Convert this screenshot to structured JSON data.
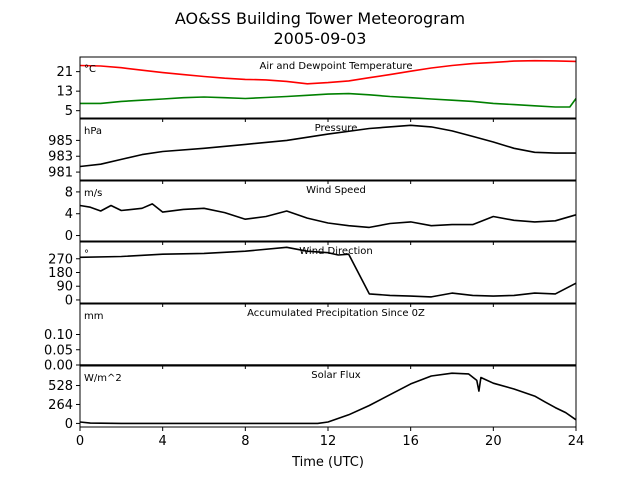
{
  "chart_data": {
    "type": "line",
    "title": "AO&SS Building Tower Meteorogram",
    "subtitle": "2005-09-03",
    "xlabel": "Time (UTC)",
    "xlim": [
      0,
      24
    ],
    "xticks": [
      "0",
      "4",
      "8",
      "12",
      "16",
      "20",
      "24"
    ],
    "grid": false,
    "panels": [
      {
        "title": "Air and Dewpoint Temperature",
        "unit": "°C",
        "ylim": [
          2,
          27
        ],
        "yticks": [
          {
            "v": 5,
            "label": "5"
          },
          {
            "v": 13,
            "label": "13"
          },
          {
            "v": 21,
            "label": "21"
          }
        ],
        "series": [
          {
            "color": "#ff0000",
            "points": [
              [
                0,
                23.5
              ],
              [
                1,
                23.3
              ],
              [
                2,
                22.6
              ],
              [
                3,
                21.6
              ],
              [
                4,
                20.6
              ],
              [
                5,
                19.8
              ],
              [
                6,
                19.0
              ],
              [
                7,
                18.3
              ],
              [
                8,
                17.8
              ],
              [
                9,
                17.6
              ],
              [
                10,
                17.0
              ],
              [
                11,
                16.0
              ],
              [
                12,
                16.5
              ],
              [
                13,
                17.2
              ],
              [
                14,
                18.5
              ],
              [
                15,
                19.8
              ],
              [
                16,
                21.2
              ],
              [
                17,
                22.5
              ],
              [
                18,
                23.5
              ],
              [
                19,
                24.3
              ],
              [
                20,
                24.8
              ],
              [
                21,
                25.3
              ],
              [
                22,
                25.5
              ],
              [
                23,
                25.4
              ],
              [
                24,
                25.2
              ]
            ]
          },
          {
            "color": "#008000",
            "points": [
              [
                0,
                8.0
              ],
              [
                1,
                8.0
              ],
              [
                2,
                8.8
              ],
              [
                3,
                9.3
              ],
              [
                4,
                9.8
              ],
              [
                5,
                10.3
              ],
              [
                6,
                10.6
              ],
              [
                7,
                10.3
              ],
              [
                8,
                10.0
              ],
              [
                9,
                10.4
              ],
              [
                10,
                10.8
              ],
              [
                11,
                11.3
              ],
              [
                12,
                11.8
              ],
              [
                13,
                12.0
              ],
              [
                14,
                11.5
              ],
              [
                15,
                10.8
              ],
              [
                16,
                10.3
              ],
              [
                17,
                9.8
              ],
              [
                18,
                9.3
              ],
              [
                19,
                8.8
              ],
              [
                20,
                8.0
              ],
              [
                21,
                7.5
              ],
              [
                22,
                7.0
              ],
              [
                23,
                6.5
              ],
              [
                23.7,
                6.5
              ],
              [
                24,
                10.0
              ]
            ]
          }
        ]
      },
      {
        "title": "Pressure",
        "unit": "hPa",
        "ylim": [
          980,
          987.7
        ],
        "yticks": [
          {
            "v": 981,
            "label": "981"
          },
          {
            "v": 983,
            "label": "983"
          },
          {
            "v": 985,
            "label": "985"
          }
        ],
        "series": [
          {
            "color": "#000000",
            "points": [
              [
                0,
                981.7
              ],
              [
                1,
                982.0
              ],
              [
                2,
                982.6
              ],
              [
                3,
                983.2
              ],
              [
                4,
                983.6
              ],
              [
                6,
                984.0
              ],
              [
                8,
                984.5
              ],
              [
                10,
                985.0
              ],
              [
                12,
                985.8
              ],
              [
                14,
                986.5
              ],
              [
                16,
                986.9
              ],
              [
                17,
                986.7
              ],
              [
                18,
                986.2
              ],
              [
                19,
                985.5
              ],
              [
                20,
                984.8
              ],
              [
                21,
                984.0
              ],
              [
                22,
                983.5
              ],
              [
                23,
                983.4
              ],
              [
                24,
                983.4
              ]
            ]
          }
        ]
      },
      {
        "title": "Wind Speed",
        "unit": "m/s",
        "ylim": [
          -1,
          10
        ],
        "yticks": [
          {
            "v": 0,
            "label": "0"
          },
          {
            "v": 4,
            "label": "4"
          },
          {
            "v": 8,
            "label": "8"
          }
        ],
        "series": [
          {
            "color": "#000000",
            "points": [
              [
                0,
                5.5
              ],
              [
                0.5,
                5.2
              ],
              [
                1,
                4.5
              ],
              [
                1.5,
                5.5
              ],
              [
                2,
                4.6
              ],
              [
                3,
                5.0
              ],
              [
                3.5,
                5.8
              ],
              [
                4,
                4.3
              ],
              [
                5,
                4.8
              ],
              [
                6,
                5.0
              ],
              [
                7,
                4.2
              ],
              [
                8,
                3.0
              ],
              [
                9,
                3.5
              ],
              [
                10,
                4.5
              ],
              [
                11,
                3.2
              ],
              [
                12,
                2.3
              ],
              [
                13,
                1.8
              ],
              [
                14,
                1.5
              ],
              [
                15,
                2.2
              ],
              [
                16,
                2.5
              ],
              [
                17,
                1.8
              ],
              [
                18,
                2.0
              ],
              [
                19,
                2.0
              ],
              [
                20,
                3.5
              ],
              [
                21,
                2.8
              ],
              [
                22,
                2.5
              ],
              [
                23,
                2.7
              ],
              [
                24,
                3.8
              ]
            ]
          }
        ]
      },
      {
        "title": "Wind Direction",
        "unit": "°",
        "ylim": [
          -20,
          380
        ],
        "yticks": [
          {
            "v": 0,
            "label": "0"
          },
          {
            "v": 90,
            "label": "90"
          },
          {
            "v": 180,
            "label": "180"
          },
          {
            "v": 270,
            "label": "270"
          }
        ],
        "series": [
          {
            "color": "#000000",
            "points": [
              [
                0,
                280
              ],
              [
                2,
                285
              ],
              [
                4,
                300
              ],
              [
                6,
                305
              ],
              [
                8,
                320
              ],
              [
                10,
                345
              ],
              [
                11,
                320
              ],
              [
                12,
                310
              ],
              [
                12.5,
                295
              ],
              [
                13,
                300
              ],
              [
                14,
                40
              ],
              [
                15,
                30
              ],
              [
                16,
                25
              ],
              [
                17,
                20
              ],
              [
                18,
                45
              ],
              [
                19,
                30
              ],
              [
                20,
                25
              ],
              [
                21,
                30
              ],
              [
                22,
                45
              ],
              [
                23,
                40
              ],
              [
                24,
                110
              ]
            ]
          }
        ]
      },
      {
        "title": "Accumulated Precipitation Since 0Z",
        "unit": "mm",
        "ylim": [
          0,
          0.2
        ],
        "yticks": [
          {
            "v": 0,
            "label": "0.00"
          },
          {
            "v": 0.05,
            "label": "0.05"
          },
          {
            "v": 0.1,
            "label": "0.10"
          }
        ],
        "series": [
          {
            "color": "#000000",
            "points": [
              [
                0,
                0
              ],
              [
                24,
                0
              ]
            ]
          }
        ]
      },
      {
        "title": "Solar Flux",
        "unit": "W/m^2",
        "ylim": [
          -50,
          800
        ],
        "yticks": [
          {
            "v": 0,
            "label": "0"
          },
          {
            "v": 264,
            "label": "264"
          },
          {
            "v": 528,
            "label": "528"
          }
        ],
        "series": [
          {
            "color": "#000000",
            "points": [
              [
                0,
                20
              ],
              [
                0.5,
                5
              ],
              [
                2,
                0
              ],
              [
                8,
                0
              ],
              [
                11.5,
                0
              ],
              [
                12,
                20
              ],
              [
                13,
                120
              ],
              [
                14,
                250
              ],
              [
                15,
                400
              ],
              [
                16,
                550
              ],
              [
                17,
                660
              ],
              [
                18,
                700
              ],
              [
                18.8,
                690
              ],
              [
                19.2,
                600
              ],
              [
                19.3,
                450
              ],
              [
                19.4,
                640
              ],
              [
                20,
                560
              ],
              [
                21,
                480
              ],
              [
                22,
                380
              ],
              [
                22.5,
                300
              ],
              [
                23,
                220
              ],
              [
                23.5,
                150
              ],
              [
                24,
                50
              ]
            ]
          }
        ]
      }
    ]
  }
}
